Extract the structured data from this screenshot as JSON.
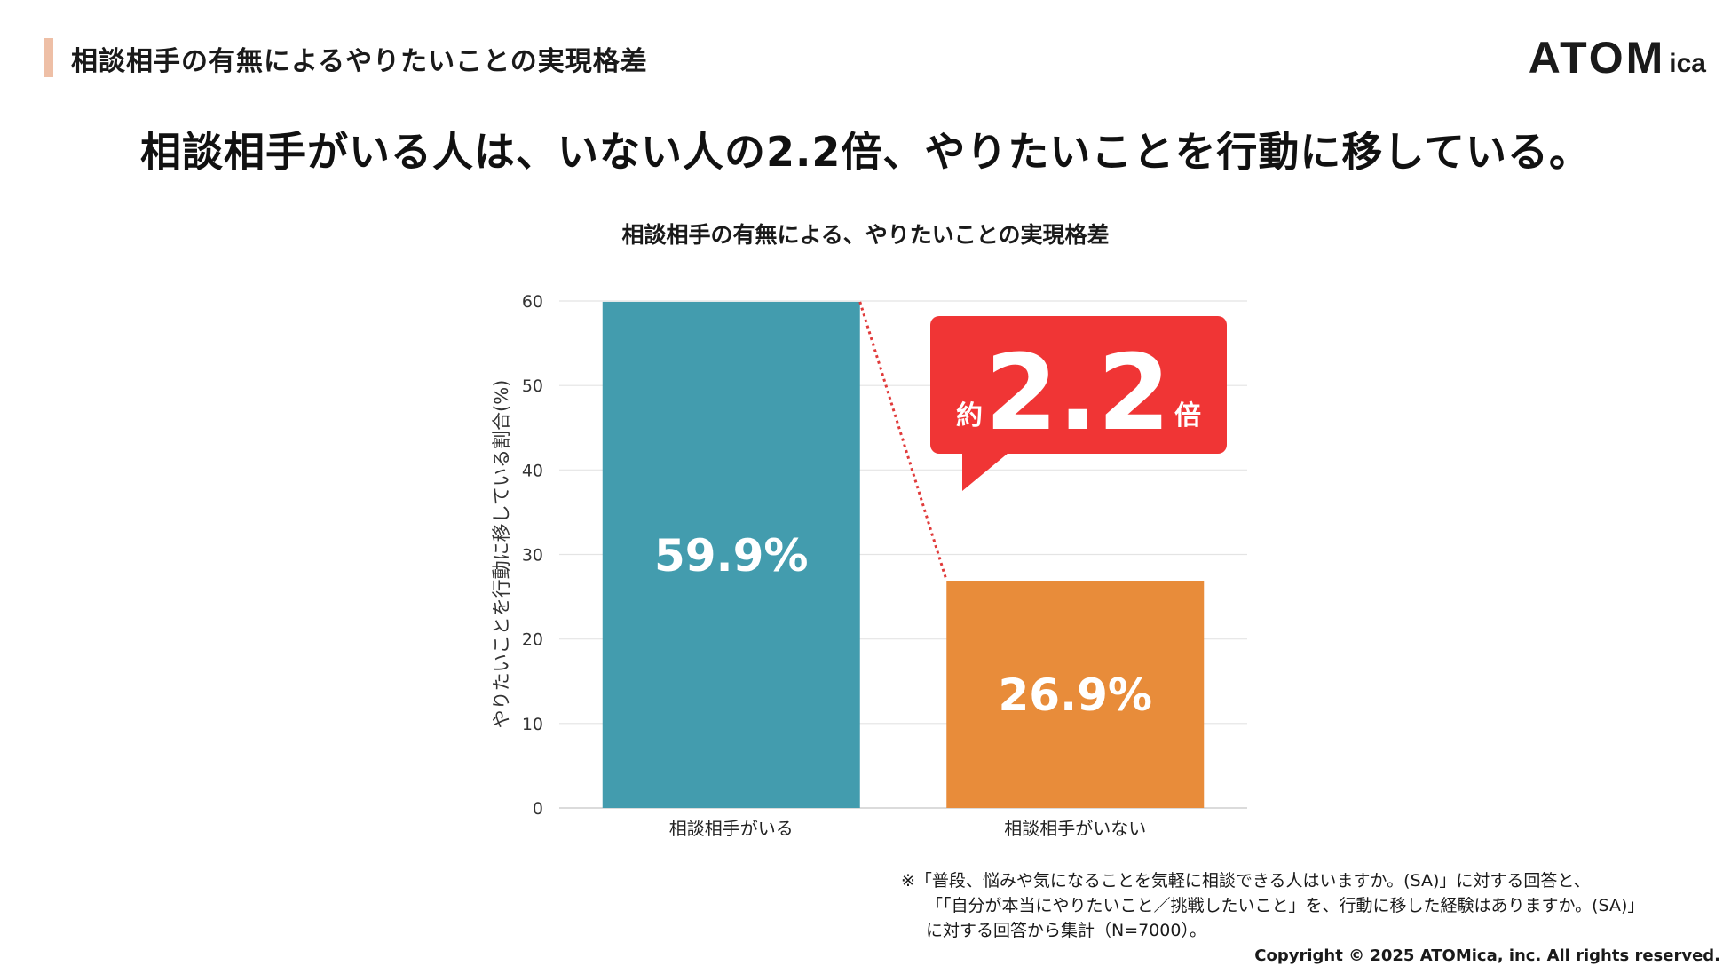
{
  "header": {
    "title": "相談相手の有無によるやりたいことの実現格差"
  },
  "logo": {
    "main": "ATOM",
    "sub": "ica"
  },
  "headline": "相談相手がいる人は、いない人の2.2倍、やりたいことを行動に移している。",
  "chart_data": {
    "type": "bar",
    "title": "相談相手の有無による、やりたいことの実現格差",
    "xlabel": "",
    "ylabel": "やりたいことを行動に移している割合(%)",
    "categories": [
      "相談相手がいる",
      "相談相手がいない"
    ],
    "values": [
      59.9,
      26.9
    ],
    "data_labels": [
      "59.9%",
      "26.9%"
    ],
    "colors": [
      "#439cae",
      "#e88c3a"
    ],
    "ylim": [
      0,
      60
    ],
    "yticks": [
      0,
      10,
      20,
      30,
      40,
      50,
      60
    ],
    "grid": true,
    "legend": "none",
    "callout": {
      "prefix": "約",
      "value": "2.2",
      "suffix": "倍",
      "color": "#f03535"
    },
    "connector_color": "#e03a3a"
  },
  "footnote": {
    "line1": "※「普段、悩みや気になることを気軽に相談できる人はいますか。(SA)」に対する回答と、",
    "line2": "「「自分が本当にやりたいこと／挑戦したいこと」を、行動に移した経験はありますか。(SA)」",
    "line3": "に対する回答から集計（N=7000）。"
  },
  "copyright": "Copyright © 2025 ATOMica, inc. All rights reserved."
}
